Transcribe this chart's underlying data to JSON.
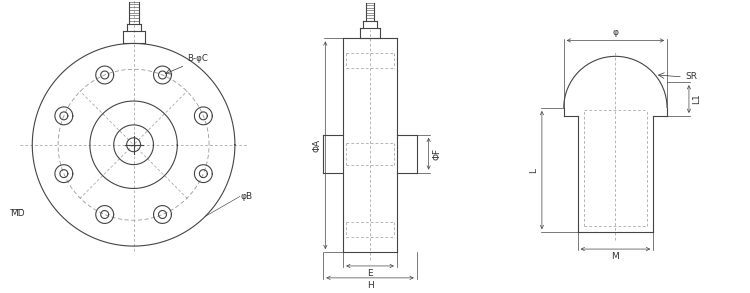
{
  "bg_color": "#ffffff",
  "line_color": "#444444",
  "dim_color": "#444444",
  "text_color": "#333333",
  "dash_color": "#999999",
  "fig_width": 7.5,
  "fig_height": 2.93,
  "labels": {
    "B_phiC": "B-φC",
    "phiB": "φB",
    "MD": "MD",
    "phiA": "ΦA",
    "phiF": "ΦF",
    "E": "E",
    "H": "H",
    "phi": "φ",
    "SR": "SR",
    "L1": "L1",
    "L": "L",
    "M": "M"
  }
}
